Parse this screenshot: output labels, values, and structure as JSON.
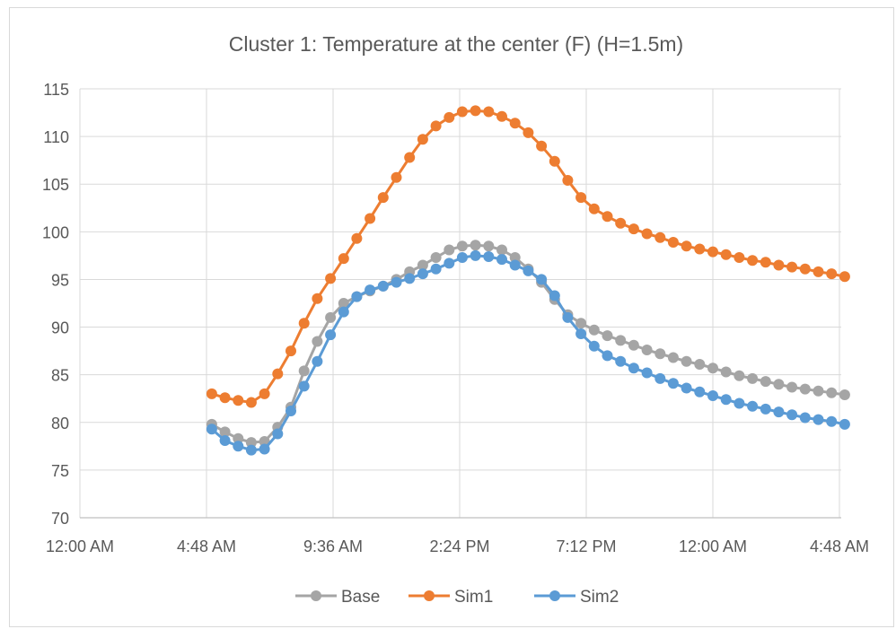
{
  "chart_data": {
    "type": "line",
    "title": "Cluster 1: Temperature at the center (F) (H=1.5m)",
    "xlabel": "",
    "ylabel": "",
    "ylim": [
      70,
      115
    ],
    "y_ticks": [
      70,
      75,
      80,
      85,
      90,
      95,
      100,
      105,
      110,
      115
    ],
    "xlim": [
      0,
      1.0
    ],
    "x_ticks": [
      {
        "value": 0.0,
        "label": "12:00 AM"
      },
      {
        "value": 0.2,
        "label": "4:48 AM"
      },
      {
        "value": 0.4,
        "label": "9:36 AM"
      },
      {
        "value": 0.6,
        "label": "2:24 PM"
      },
      {
        "value": 0.8,
        "label": "7:12 PM"
      },
      {
        "value": 1.0,
        "label": "12:00 AM"
      },
      {
        "value": 1.2,
        "label": "4:48 AM"
      }
    ],
    "grid": true,
    "legend": "bottom",
    "x_hours": [
      5,
      5.5,
      6,
      6.5,
      7,
      7.5,
      8,
      8.5,
      9,
      9.5,
      10,
      10.5,
      11,
      11.5,
      12,
      12.5,
      13,
      13.5,
      14,
      14.5,
      15,
      15.5,
      16,
      16.5,
      17,
      17.5,
      18,
      18.5,
      19,
      19.5,
      20,
      20.5,
      21,
      21.5,
      22,
      22.5,
      23,
      23.5,
      24,
      24.5,
      25,
      25.5,
      26,
      26.5,
      27,
      27.5,
      28,
      28.5,
      29
    ],
    "series": [
      {
        "name": "Base",
        "color": "#a5a5a5",
        "values": [
          79.8,
          79.0,
          78.3,
          77.9,
          78.0,
          79.5,
          81.6,
          85.4,
          88.5,
          91.0,
          92.5,
          93.2,
          93.8,
          94.3,
          95.0,
          95.8,
          96.5,
          97.3,
          98.1,
          98.5,
          98.6,
          98.5,
          98.1,
          97.3,
          96.1,
          94.7,
          92.9,
          91.3,
          90.4,
          89.7,
          89.1,
          88.6,
          88.1,
          87.6,
          87.2,
          86.8,
          86.4,
          86.1,
          85.7,
          85.3,
          84.9,
          84.6,
          84.3,
          84.0,
          83.7,
          83.5,
          83.3,
          83.1,
          82.9
        ]
      },
      {
        "name": "Sim1",
        "color": "#ed7d31",
        "values": [
          83.0,
          82.6,
          82.3,
          82.1,
          83.0,
          85.1,
          87.5,
          90.4,
          93.0,
          95.1,
          97.2,
          99.3,
          101.4,
          103.6,
          105.7,
          107.8,
          109.7,
          111.1,
          112.0,
          112.6,
          112.7,
          112.6,
          112.1,
          111.4,
          110.4,
          109.0,
          107.4,
          105.4,
          103.6,
          102.4,
          101.6,
          100.9,
          100.3,
          99.8,
          99.4,
          98.9,
          98.5,
          98.2,
          97.9,
          97.6,
          97.3,
          97.0,
          96.8,
          96.5,
          96.3,
          96.1,
          95.8,
          95.6,
          95.3
        ]
      },
      {
        "name": "Sim2",
        "color": "#5b9bd5",
        "values": [
          79.3,
          78.1,
          77.5,
          77.1,
          77.2,
          78.8,
          81.2,
          83.8,
          86.4,
          89.2,
          91.6,
          93.2,
          93.9,
          94.3,
          94.7,
          95.1,
          95.6,
          96.1,
          96.7,
          97.3,
          97.5,
          97.4,
          97.1,
          96.5,
          95.9,
          95.0,
          93.3,
          91.0,
          89.3,
          88.0,
          87.0,
          86.4,
          85.7,
          85.2,
          84.6,
          84.1,
          83.6,
          83.2,
          82.8,
          82.4,
          82.0,
          81.7,
          81.4,
          81.1,
          80.8,
          80.5,
          80.3,
          80.1,
          79.8
        ]
      }
    ]
  }
}
